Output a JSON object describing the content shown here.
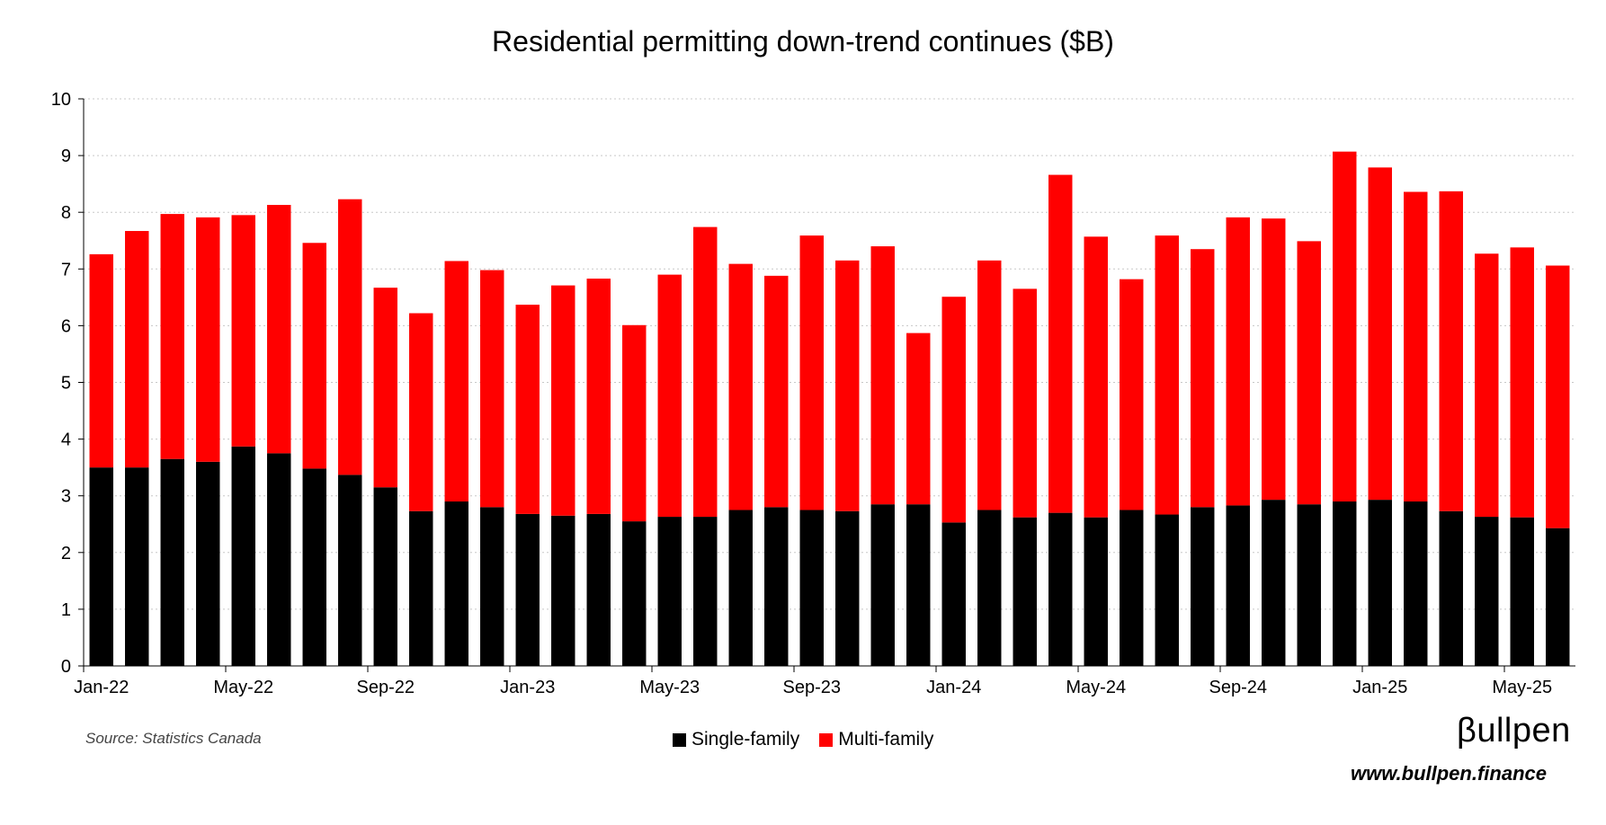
{
  "chart_data": {
    "type": "bar",
    "stacked": true,
    "title": "Residential permitting down-trend continues ($B)",
    "xlabel": "",
    "ylabel": "",
    "ylim": [
      0,
      10
    ],
    "yticks": [
      0,
      1,
      2,
      3,
      4,
      5,
      6,
      7,
      8,
      9,
      10
    ],
    "grid": "horizontal-dotted",
    "legend_position": "bottom",
    "x_tick_labels": {
      "0": "Jan-22",
      "4": "May-22",
      "8": "Sep-22",
      "12": "Jan-23",
      "16": "May-23",
      "20": "Sep-23",
      "24": "Jan-24",
      "28": "May-24",
      "32": "Sep-24",
      "36": "Jan-25",
      "40": "May-25"
    },
    "categories": [
      "Jan-22",
      "Feb-22",
      "Mar-22",
      "Apr-22",
      "May-22",
      "Jun-22",
      "Jul-22",
      "Aug-22",
      "Sep-22",
      "Oct-22",
      "Nov-22",
      "Dec-22",
      "Jan-23",
      "Feb-23",
      "Mar-23",
      "Apr-23",
      "May-23",
      "Jun-23",
      "Jul-23",
      "Aug-23",
      "Sep-23",
      "Oct-23",
      "Nov-23",
      "Dec-23",
      "Jan-24",
      "Feb-24",
      "Mar-24",
      "Apr-24",
      "May-24",
      "Jun-24",
      "Jul-24",
      "Aug-24",
      "Sep-24",
      "Oct-24",
      "Nov-24",
      "Dec-24",
      "Jan-25",
      "Feb-25",
      "Mar-25",
      "Apr-25",
      "May-25",
      "Jun-25"
    ],
    "series": [
      {
        "name": "Single-family",
        "color": "#000000",
        "values": [
          3.5,
          3.5,
          3.65,
          3.6,
          3.87,
          3.75,
          3.48,
          3.37,
          3.15,
          2.73,
          2.9,
          2.8,
          2.68,
          2.65,
          2.68,
          2.55,
          2.63,
          2.63,
          2.75,
          2.8,
          2.75,
          2.73,
          2.85,
          2.85,
          2.53,
          2.75,
          2.62,
          2.7,
          2.62,
          2.75,
          2.67,
          2.8,
          2.83,
          2.93,
          2.85,
          2.9,
          2.93,
          2.9,
          2.73,
          2.63,
          2.62,
          2.43
        ]
      },
      {
        "name": "Multi-family",
        "color": "#ff0000",
        "values": [
          3.76,
          4.17,
          4.32,
          4.31,
          4.08,
          4.38,
          3.98,
          4.86,
          3.52,
          3.49,
          4.24,
          4.18,
          3.69,
          4.06,
          4.15,
          3.46,
          4.27,
          5.11,
          4.34,
          4.08,
          4.84,
          4.42,
          4.55,
          3.02,
          3.98,
          4.4,
          4.03,
          5.96,
          4.95,
          4.07,
          4.92,
          4.55,
          5.08,
          4.96,
          4.64,
          6.17,
          5.86,
          5.46,
          5.64,
          4.64,
          4.76,
          4.63
        ]
      }
    ]
  },
  "source_note": "Source: Statistics Canada",
  "brand": {
    "logo_text": "βullpen",
    "url": "www.bullpen.finance"
  }
}
